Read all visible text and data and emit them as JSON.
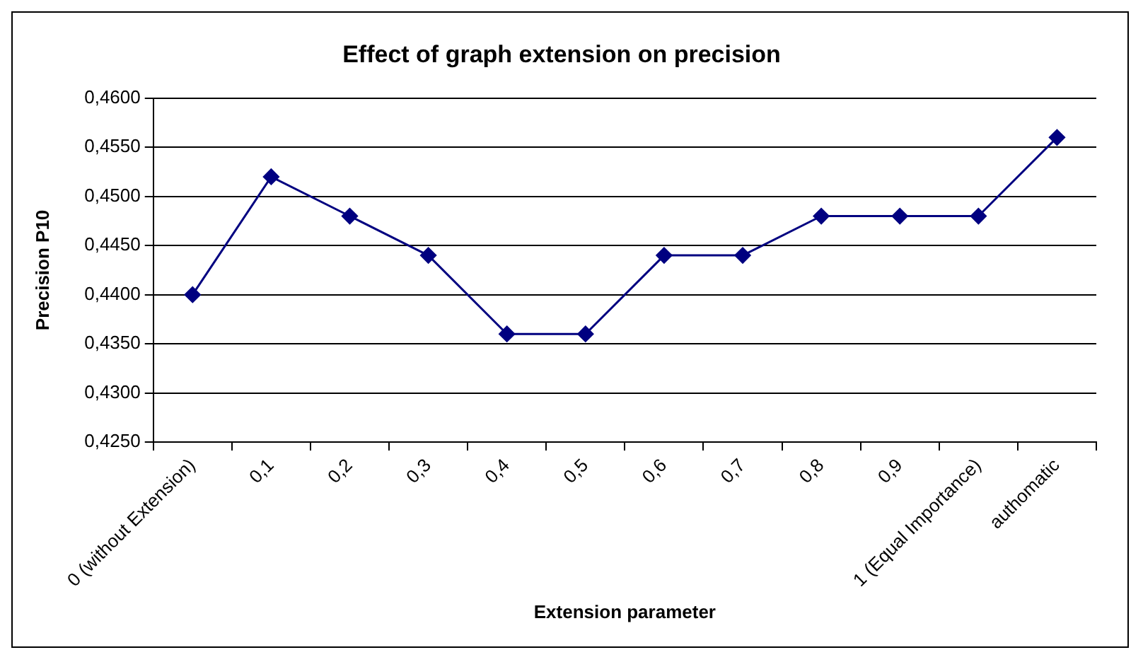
{
  "chart_data": {
    "type": "line",
    "title": "Effect of graph extension on precision",
    "xlabel": "Extension parameter",
    "ylabel": "Precision P10",
    "categories": [
      "0 (without Extension)",
      "0,1",
      "0,2",
      "0,3",
      "0,4",
      "0,5",
      "0,6",
      "0,7",
      "0,8",
      "0,9",
      "1 (Equal Importance)",
      "authomatic"
    ],
    "series": [
      {
        "color": "#000080",
        "values": [
          0.44,
          0.452,
          0.448,
          0.444,
          0.436,
          0.436,
          0.444,
          0.444,
          0.448,
          0.448,
          0.448,
          0.456
        ]
      }
    ],
    "ylim": [
      0.425,
      0.46
    ],
    "yticks": [
      {
        "value": 0.425,
        "label": "0,4250"
      },
      {
        "value": 0.43,
        "label": "0,4300"
      },
      {
        "value": 0.435,
        "label": "0,4350"
      },
      {
        "value": 0.44,
        "label": "0,4400"
      },
      {
        "value": 0.445,
        "label": "0,4450"
      },
      {
        "value": 0.45,
        "label": "0,4500"
      },
      {
        "value": 0.455,
        "label": "0,4550"
      },
      {
        "value": 0.46,
        "label": "0,4600"
      }
    ],
    "grid": "y",
    "legend": false,
    "marker": "diamond",
    "line_style": "solid"
  }
}
